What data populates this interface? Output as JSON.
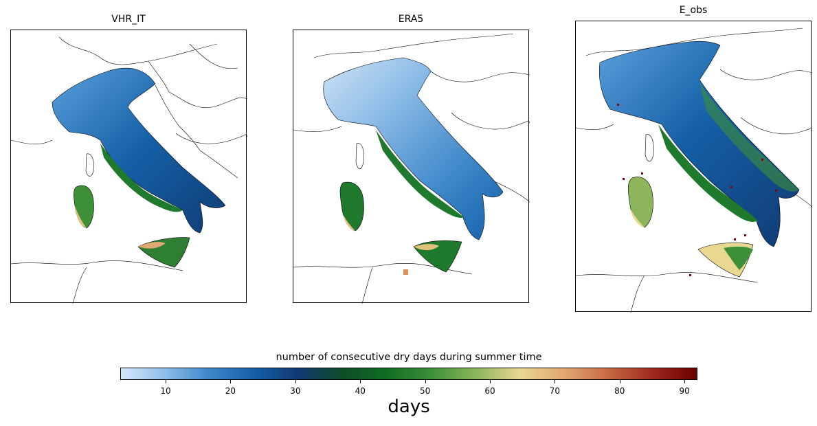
{
  "panels": [
    {
      "title": "VHR_IT"
    },
    {
      "title": "ERA5"
    },
    {
      "title": "E_obs"
    }
  ],
  "colorbar": {
    "title": "number of  consecutive dry days during summer time",
    "units": "days",
    "min": 3,
    "max": 92,
    "ticks": [
      10,
      20,
      30,
      40,
      50,
      60,
      70,
      80,
      90
    ],
    "colors": [
      "#d6e8fa",
      "#8ebde8",
      "#3b86c9",
      "#1560a8",
      "#103a72",
      "#0e4d2a",
      "#0f6e22",
      "#3d8f38",
      "#8cb45a",
      "#e8d890",
      "#e2a872",
      "#c86a44",
      "#a0281c",
      "#6a0000"
    ]
  },
  "legend_colors": {
    "coast": "#000000",
    "land_blue_light": "#8ebde8",
    "land_blue_dark": "#1560a8",
    "land_green": "#1f7a2e",
    "land_tan": "#e0c07a",
    "land_red": "#8b0000"
  }
}
